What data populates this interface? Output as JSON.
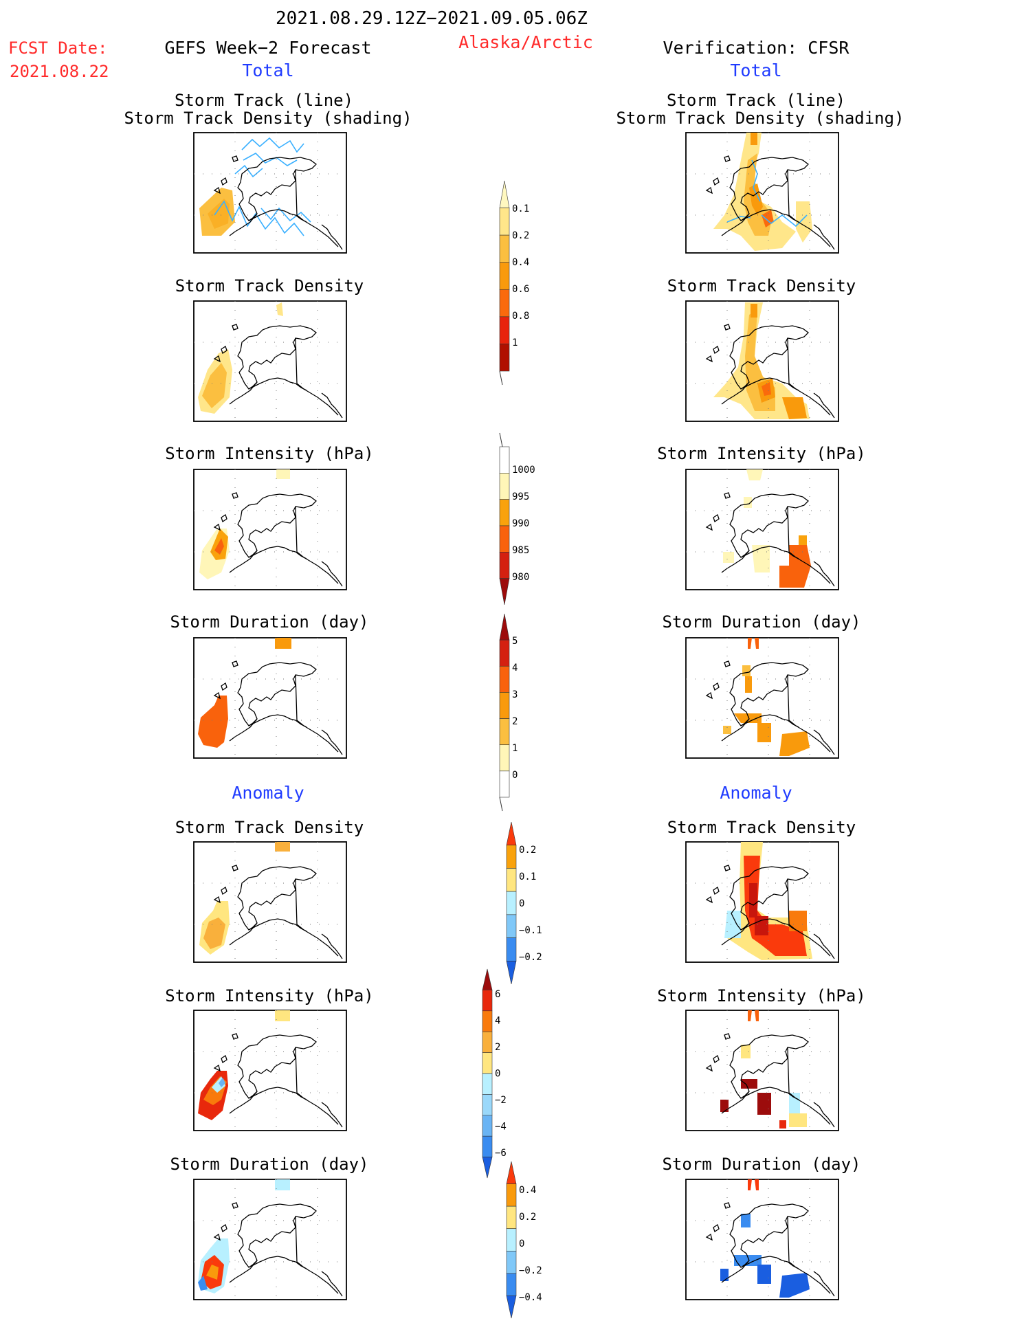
{
  "header": {
    "date_range": "2021.08.29.12Z−2021.09.05.06Z",
    "region": "Alaska/Arctic",
    "fcst_label": "FCST Date:",
    "fcst_date": "2021.08.22",
    "left_title": "GEFS Week−2 Forecast",
    "right_title": "Verification: CFSR",
    "total_label": "Total",
    "anomaly_label": "Anomaly"
  },
  "colors": {
    "red_text": "#ff2a2a",
    "blue_text": "#1f3bff",
    "track_line": "#3ab0ff"
  },
  "panel_titles": {
    "track": [
      "Storm Track (line)",
      "Storm Track Density (shading)"
    ],
    "density": "Storm Track Density",
    "intensity": "Storm Intensity (hPa)",
    "duration": "Storm Duration (day)"
  },
  "chart_data": [
    {
      "type": "heatmap",
      "name": "density_total_colorbar",
      "title": "",
      "tick_labels": [
        "0.1",
        "0.2",
        "0.4",
        "0.6",
        "0.8",
        "1"
      ],
      "colors": [
        "#fff8c0",
        "#ffe68a",
        "#fbbf40",
        "#f99a0c",
        "#fa6a0c",
        "#e8230c",
        "#b01000"
      ]
    },
    {
      "type": "heatmap",
      "name": "intensity_total_colorbar",
      "title": "",
      "tick_labels": [
        "1000",
        "995",
        "990",
        "985",
        "980"
      ],
      "colors": [
        "#ffffff",
        "#fff6b8",
        "#f9a20c",
        "#f9620c",
        "#d42010",
        "#9c0c0c"
      ]
    },
    {
      "type": "heatmap",
      "name": "duration_total_colorbar",
      "title": "",
      "tick_labels": [
        "5",
        "4",
        "3",
        "2",
        "1",
        "0"
      ],
      "colors": [
        "#9c0c0c",
        "#d42010",
        "#f9620c",
        "#f99a0c",
        "#fbbf40",
        "#fff6b8",
        "#ffffff"
      ]
    },
    {
      "type": "heatmap",
      "name": "density_anomaly_colorbar",
      "title": "",
      "tick_labels": [
        "0.2",
        "0.1",
        "0",
        "−0.1",
        "−0.2"
      ],
      "colors": [
        "#fa3a0c",
        "#f9a20c",
        "#ffe680",
        "#b8f0ff",
        "#80c8f8",
        "#3a8cf0",
        "#1a5ee0"
      ]
    },
    {
      "type": "heatmap",
      "name": "intensity_anomaly_colorbar",
      "title": "",
      "tick_labels": [
        "6",
        "4",
        "2",
        "0",
        "−2",
        "−4",
        "−6"
      ],
      "colors": [
        "#9c0c0c",
        "#e8280c",
        "#f97a0c",
        "#f9b03c",
        "#ffe680",
        "#b8f0ff",
        "#9ad8fa",
        "#6ab4f4",
        "#3a8cf0",
        "#1a5ee0"
      ]
    },
    {
      "type": "heatmap",
      "name": "duration_anomaly_colorbar",
      "title": "",
      "tick_labels": [
        "0.4",
        "0.2",
        "0",
        "−0.2",
        "−0.4"
      ],
      "colors": [
        "#fa3a0c",
        "#f99a0c",
        "#ffe680",
        "#b8f0ff",
        "#80c8f8",
        "#3a8cf0",
        "#1a5ee0"
      ]
    }
  ]
}
